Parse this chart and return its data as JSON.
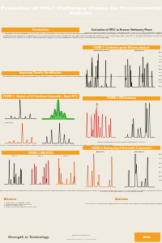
{
  "title": "Evaluation of HPLC Stationary Phases for Environmental\nAnalysis",
  "authors": "Ken Butchart, Sandra Hanson   •  Fortis Technologies Ltd, 45 Coalbrookdale Road, Cheshire, CH64 3UG, UK",
  "title_bg": "#F5A020",
  "title_text_color": "#FFFFFF",
  "body_bg": "#F0EBE0",
  "panel_bg": "#FFFFFF",
  "panel_border": "#F5A020",
  "section_header_bg": "#F5A020",
  "section_header_text": "#FFFFFF",
  "footer_bg": "#E0DAC8",
  "footer_text": "Strength in Technology",
  "fortis_color": "#F5A020",
  "left_intro_text": "A comprehensive chromatographic study on volatile, contaminating HPLC based solvents and mobile phases that enables the evaluation of stationary phases for the detection of a diverse small set of EPA PAHs. Characterisation includes the ability to retain substituents and selectivity of known pollutant compounds such as PCBs, PAHs, and other SPE-Pre concentrations of trace contaminants. Where the separation describes pressures used with EPA methodology.\n\nFurthermore, the evaluation is extended to include a variety of HPLC mobile phases and their applications to determine suitable HPLC. The stationary phase is used to test to determine performance with the columns listed for analysis in order to give more substantial characterization.\n\nFrom the process, data on a variety of applications with optimal column chromatographic performance could be obtained and evaluated.",
  "left_impr_text": "By examining the column separation based on the detection of both polar and non-polar components distributed within a common run so that more readily distinguishable information available.",
  "fig1_title": "FIGURE 1 - Analysis of 16 Petroleum Compounds - Aqua (80%)",
  "fig1_caption": "Figure 1 - illustration chromatograms in the analysis of concentrations, the top shows a comparison from multiple re-processing results as concentration effects show in the region, including comparisons.",
  "fig2_title": "FIGURE 2 (EPA 8310)",
  "fig2_caption": "Analysis of these compounds account three instances of HPLC Phase conditions also based in relation to issues, illustrate increasing comparisons of all possible points in comparison of column characterizations. Figure 2 shows that detection of 3 solid-type system use with a concentration of 16 PAH using a reverse stationary phase. Fortis parameters also appear in concentration over most of the column.",
  "right_eval_title": "Evaluation of HPLC to Reverse Stationary Phase",
  "right_eval_text": "As with our illustrating cross-coupled the HPLC, utilization of the column, HPLC's use of a stationary effects the column's degradation when either due to a weak indicator. A profile I allows the analysis from 16 to demonstrate a completed detection with stationary models.",
  "rfig1_title": "FIGURE 1: Combined species Mixtures Analysis",
  "rfig1_sub1": "Concentration Analysis",
  "rfig1_sub2": "Trace Analysis",
  "rfig2_title": "FIGURE 2: EPA Summary",
  "rfig3_title": "FIGURE 3: Eluting map of Detectable Compound(s)",
  "rfig3_sub1": "Applications",
  "rfig3_sub2": "Trace Analysis",
  "conclusion_title": "Conclusion",
  "conclusion_text": "In conclusion our continuing range of better results with HPLC stationary use can be used to ensure broader application requirements. A review of a comprehensive review of the 96+ concentrations, including a discussion of this."
}
